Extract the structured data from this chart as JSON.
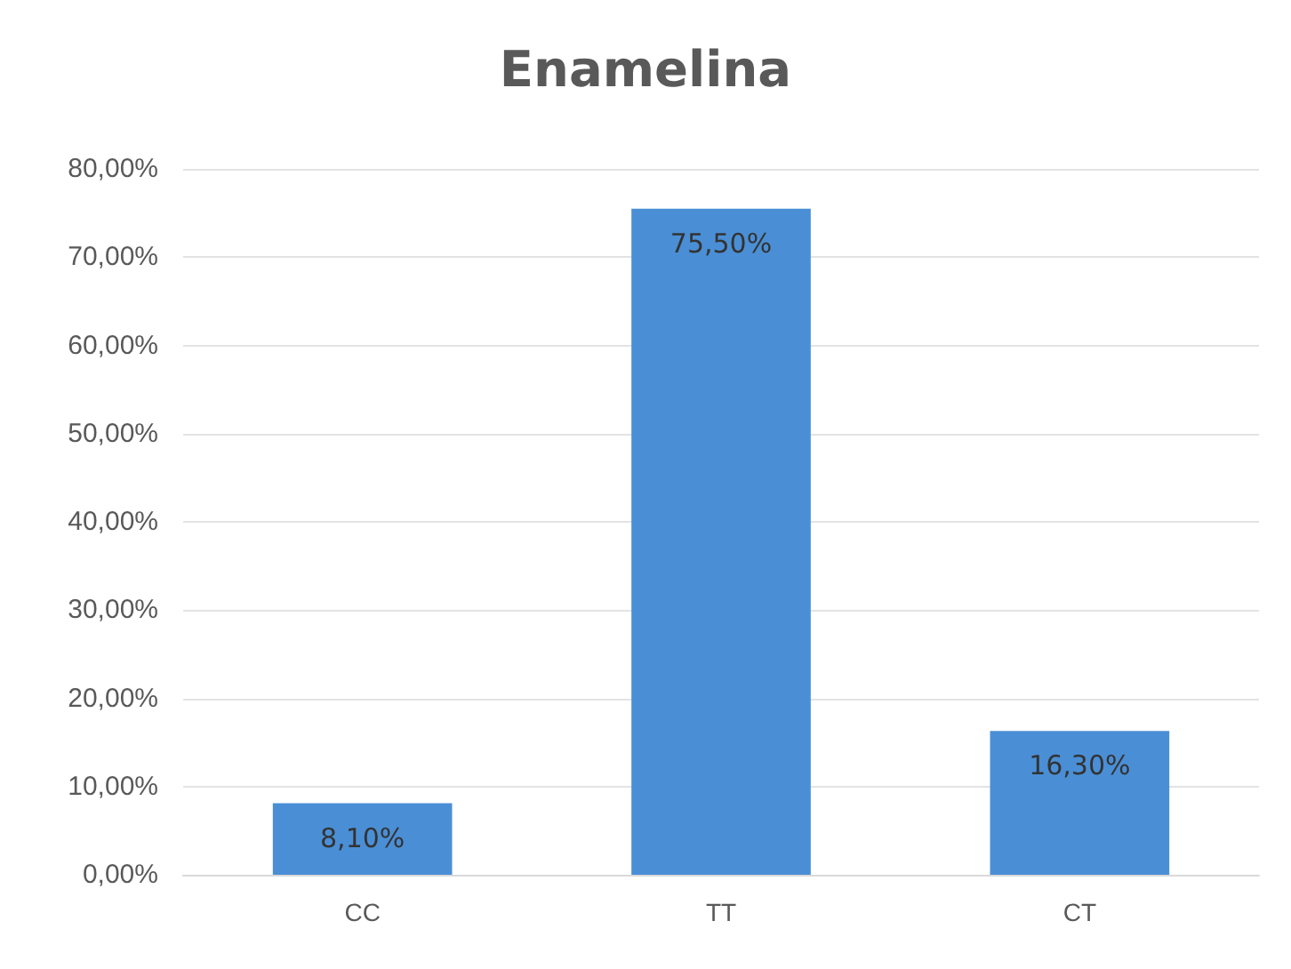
{
  "chart_data": {
    "type": "bar",
    "title": "Enamelina",
    "categories": [
      "CC",
      "TT",
      "CT"
    ],
    "values": [
      8.1,
      75.5,
      16.3
    ],
    "color": "#4a8fd6",
    "value_labels": [
      "8,10%",
      "75,50%",
      "16,30%"
    ],
    "ylim": [
      0,
      80
    ],
    "yticks": [
      {
        "value": 0,
        "label": "0,00%"
      },
      {
        "value": 10,
        "label": "10,00%"
      },
      {
        "value": 20,
        "label": "20,00%"
      },
      {
        "value": 30,
        "label": "30,00%"
      },
      {
        "value": 40,
        "label": "40,00%"
      },
      {
        "value": 50,
        "label": "50,00%"
      },
      {
        "value": 60,
        "label": "60,00%"
      },
      {
        "value": 70,
        "label": "70,00%"
      },
      {
        "value": 80,
        "label": "80,00%"
      }
    ],
    "grid": "y"
  }
}
